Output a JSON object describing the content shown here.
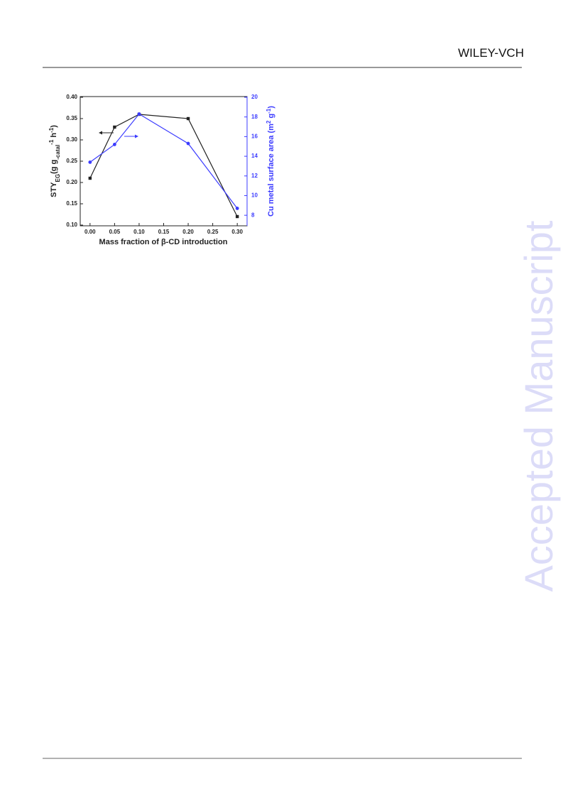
{
  "header": {
    "publisher": "WILEY-VCH"
  },
  "watermark": "Accepted Manuscript",
  "chart_data": {
    "type": "line",
    "xlabel": "Mass fraction of β-CD introduction",
    "ylabel": [
      {
        "text": "STY"
      },
      {
        "text": "EG",
        "shift": "sub"
      },
      {
        "text": "(g g"
      },
      {
        "text": "-catal",
        "shift": "sub"
      },
      {
        "text": "-1",
        "shift": "super"
      },
      {
        "text": " h"
      },
      {
        "text": "-1",
        "shift": "super"
      },
      {
        "text": ")"
      }
    ],
    "y2label": [
      {
        "text": "Cu metal surface area (m"
      },
      {
        "text": "2",
        "shift": "super"
      },
      {
        "text": " g"
      },
      {
        "text": "-1",
        "shift": "super"
      },
      {
        "text": ")"
      }
    ],
    "x": [
      0.0,
      0.05,
      0.1,
      0.2,
      0.3
    ],
    "series": [
      {
        "name": "STY",
        "color": "#222222",
        "marker": "square",
        "values": [
          0.21,
          0.33,
          0.36,
          0.35,
          0.12
        ]
      },
      {
        "name": "Cu surface area",
        "color": "#3b3bff",
        "marker": "circle",
        "axis": "y2",
        "values": [
          13.4,
          15.2,
          18.3,
          15.3,
          8.7
        ]
      }
    ],
    "xlim": [
      -0.02,
      0.32
    ],
    "xticks": [
      {
        "value": 0.0,
        "label": "0.00"
      },
      {
        "value": 0.05,
        "label": "0.05"
      },
      {
        "value": 0.1,
        "label": "0.10"
      },
      {
        "value": 0.15,
        "label": "0.15"
      },
      {
        "value": 0.2,
        "label": "0.20"
      },
      {
        "value": 0.25,
        "label": "0.25"
      },
      {
        "value": 0.3,
        "label": "0.30"
      }
    ],
    "ylim": [
      0.1,
      0.4
    ],
    "yticks": [
      {
        "value": 0.1,
        "label": "0.10"
      },
      {
        "value": 0.15,
        "label": "0.15"
      },
      {
        "value": 0.2,
        "label": "0.20"
      },
      {
        "value": 0.25,
        "label": "0.25"
      },
      {
        "value": 0.3,
        "label": "0.30"
      },
      {
        "value": 0.35,
        "label": "0.35"
      },
      {
        "value": 0.4,
        "label": "0.40"
      }
    ],
    "y2lim": [
      7,
      20
    ],
    "y2ticks": [
      8,
      10,
      12,
      14,
      16,
      18,
      20
    ],
    "y2color": "#3b3bff"
  }
}
